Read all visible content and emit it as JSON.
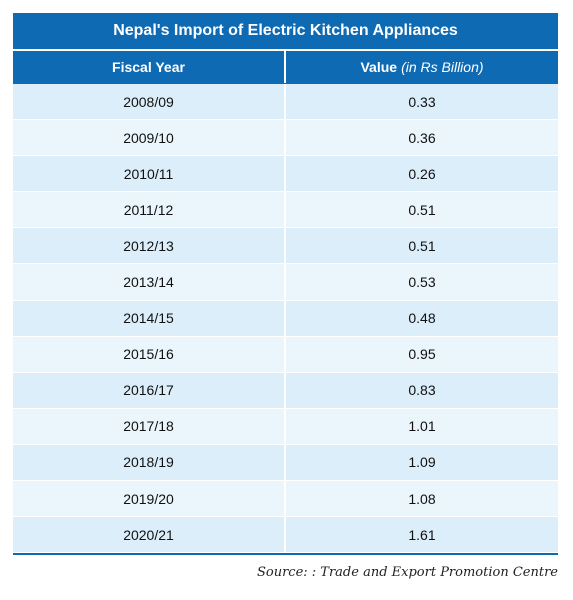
{
  "chart_data": {
    "type": "table",
    "title": "Nepal's Import of Electric Kitchen Appliances",
    "columns": {
      "year_label": "Fiscal Year",
      "value_label": "Value",
      "value_unit": "(in Rs Billion)"
    },
    "rows": [
      {
        "year": "2008/09",
        "value": "0.33"
      },
      {
        "year": "2009/10",
        "value": "0.36"
      },
      {
        "year": "2010/11",
        "value": "0.26"
      },
      {
        "year": "2011/12",
        "value": "0.51"
      },
      {
        "year": "2012/13",
        "value": "0.51"
      },
      {
        "year": "2013/14",
        "value": "0.53"
      },
      {
        "year": "2014/15",
        "value": "0.48"
      },
      {
        "year": "2015/16",
        "value": "0.95"
      },
      {
        "year": "2016/17",
        "value": "0.83"
      },
      {
        "year": "2017/18",
        "value": "1.01"
      },
      {
        "year": "2018/19",
        "value": "1.09"
      },
      {
        "year": "2019/20",
        "value": "1.08"
      },
      {
        "year": "2020/21",
        "value": "1.61"
      }
    ],
    "source": "Source: : Trade and Export Promotion Centre"
  },
  "colors": {
    "header_bg": "#0f6ab4",
    "row_light": "#eaf5fc",
    "row_dark": "#dceefa"
  }
}
